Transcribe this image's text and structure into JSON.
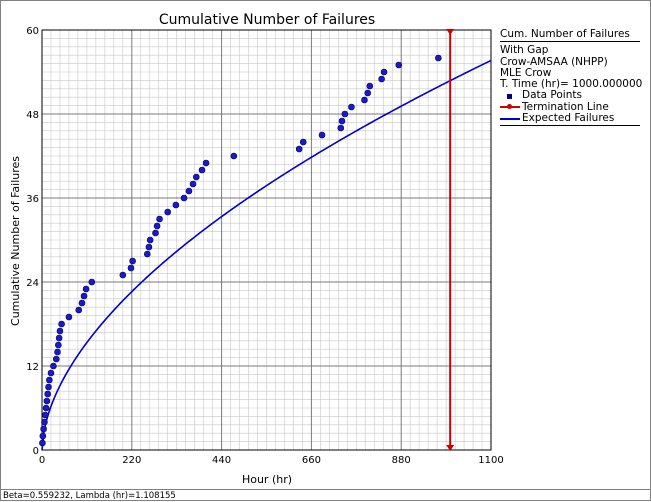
{
  "chart_data": {
    "type": "scatter",
    "title": "Cumulative Number of Failures",
    "xlabel": "Hour (hr)",
    "ylabel": "Cumulative Number of Failures",
    "xlim": [
      0,
      1100
    ],
    "ylim": [
      0,
      60
    ],
    "xticks": [
      "0",
      "220",
      "440",
      "660",
      "880",
      "1100"
    ],
    "yticks": [
      "0",
      "12",
      "24",
      "36",
      "48",
      "60"
    ],
    "grid": true,
    "legend_position": "right",
    "series": [
      {
        "name": "Data Points",
        "kind": "scatter",
        "color": "#1a1acc",
        "x": [
          1,
          2,
          4,
          6,
          8,
          10,
          12,
          14,
          16,
          18,
          22,
          28,
          35,
          38,
          40,
          42,
          44,
          48,
          66,
          90,
          98,
          103,
          108,
          122,
          198,
          218,
          222,
          258,
          262,
          265,
          278,
          282,
          288,
          308,
          328,
          348,
          360,
          370,
          378,
          392,
          402,
          470,
          630,
          640,
          686,
          732,
          735,
          742,
          758,
          790,
          798,
          803,
          832,
          838,
          874,
          971
        ],
        "y": [
          1,
          2,
          3,
          4,
          5,
          6,
          7,
          8,
          9,
          10,
          11,
          12,
          13,
          14,
          15,
          16,
          17,
          18,
          19,
          20,
          21,
          22,
          23,
          24,
          25,
          26,
          27,
          28,
          29,
          30,
          31,
          32,
          33,
          34,
          35,
          36,
          37,
          38,
          39,
          40,
          41,
          42,
          43,
          44,
          45,
          46,
          47,
          48,
          49,
          50,
          51,
          52,
          53,
          54,
          55,
          56
        ]
      },
      {
        "name": "Termination Line",
        "kind": "vline",
        "color": "#d00000",
        "x": 1000
      },
      {
        "name": "Expected Failures",
        "kind": "line",
        "color": "#0000cc",
        "beta": 0.559232,
        "lambda": 1.108155
      }
    ]
  },
  "legend": {
    "header": "Cum. Number of Failures",
    "info": [
      "With Gap",
      "Crow-AMSAA (NHPP)",
      "MLE Crow",
      "T. Time (hr)= 1000.000000"
    ],
    "items": [
      "Data Points",
      "Termination Line",
      "Expected Failures"
    ]
  },
  "footer": "Beta=0.559232, Lambda (hr)=1.108155"
}
